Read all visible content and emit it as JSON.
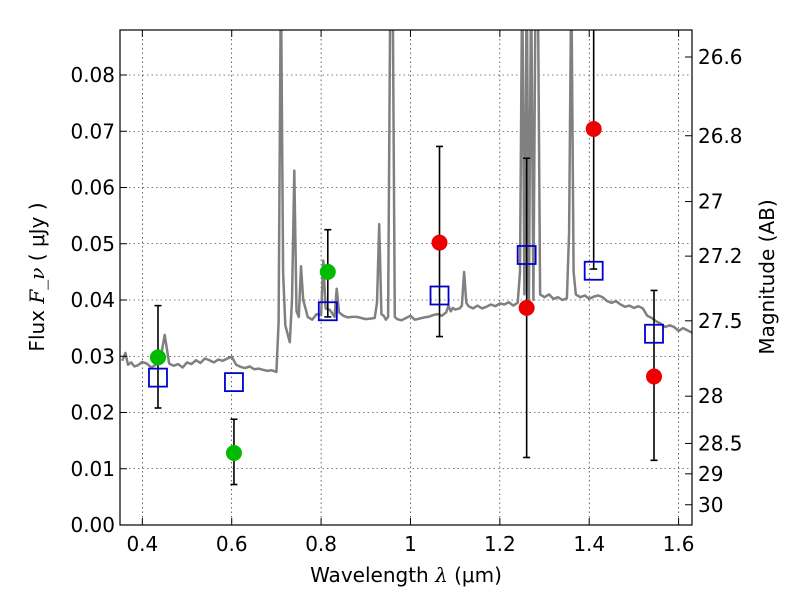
{
  "chart_data": {
    "type": "scatter",
    "title": "",
    "xlabel": "Wavelength  λ (μm)",
    "ylabel": "Flux  F_ν  ( μJy )",
    "ylabel_right": "Magnitude (AB)",
    "xlim": [
      0.35,
      1.63
    ],
    "ylim": [
      0.0,
      0.088
    ],
    "grid": true,
    "x_ticks": [
      0.4,
      0.6,
      0.8,
      1.0,
      1.2,
      1.4,
      1.6
    ],
    "x_tick_labels": [
      "0.4",
      "0.6",
      "0.8",
      "1",
      "1.2",
      "1.4",
      "1.6"
    ],
    "y_ticks": [
      0.0,
      0.01,
      0.02,
      0.03,
      0.04,
      0.05,
      0.06,
      0.07,
      0.08
    ],
    "y_tick_labels": [
      "0.00",
      "0.01",
      "0.02",
      "0.03",
      "0.04",
      "0.05",
      "0.06",
      "0.07",
      "0.08"
    ],
    "right_axis_ticks": [
      {
        "label": "26.6",
        "flux": 0.0832
      },
      {
        "label": "26.8",
        "flux": 0.0692
      },
      {
        "label": "27",
        "flux": 0.0575
      },
      {
        "label": "27.2",
        "flux": 0.0478
      },
      {
        "label": "27.5",
        "flux": 0.0363
      },
      {
        "label": "28",
        "flux": 0.0229
      },
      {
        "label": "28.5",
        "flux": 0.0145
      },
      {
        "label": "29",
        "flux": 0.0091
      },
      {
        "label": "30",
        "flux": 0.0036
      }
    ],
    "series": [
      {
        "kind": "spectrum",
        "color": "#808080",
        "x": [
          0.355,
          0.362,
          0.368,
          0.375,
          0.382,
          0.39,
          0.4,
          0.41,
          0.42,
          0.43,
          0.44,
          0.45,
          0.46,
          0.47,
          0.48,
          0.49,
          0.5,
          0.51,
          0.52,
          0.53,
          0.54,
          0.55,
          0.56,
          0.57,
          0.58,
          0.59,
          0.6,
          0.61,
          0.62,
          0.63,
          0.64,
          0.65,
          0.66,
          0.67,
          0.68,
          0.69,
          0.7,
          0.705,
          0.71,
          0.715,
          0.72,
          0.73,
          0.735,
          0.74,
          0.745,
          0.75,
          0.755,
          0.76,
          0.765,
          0.77,
          0.78,
          0.79,
          0.8,
          0.805,
          0.81,
          0.82,
          0.83,
          0.835,
          0.84,
          0.85,
          0.86,
          0.87,
          0.88,
          0.89,
          0.9,
          0.91,
          0.92,
          0.925,
          0.93,
          0.935,
          0.94,
          0.945,
          0.95,
          0.955,
          0.96,
          0.965,
          0.97,
          0.98,
          0.99,
          1.0,
          1.01,
          1.02,
          1.03,
          1.04,
          1.05,
          1.06,
          1.07,
          1.08,
          1.085,
          1.09,
          1.095,
          1.1,
          1.11,
          1.115,
          1.12,
          1.125,
          1.13,
          1.14,
          1.15,
          1.16,
          1.17,
          1.18,
          1.19,
          1.2,
          1.21,
          1.22,
          1.23,
          1.24,
          1.245,
          1.25,
          1.255,
          1.26,
          1.265,
          1.27,
          1.275,
          1.28,
          1.285,
          1.29,
          1.3,
          1.31,
          1.32,
          1.33,
          1.34,
          1.35,
          1.355,
          1.36,
          1.365,
          1.37,
          1.38,
          1.39,
          1.4,
          1.41,
          1.42,
          1.43,
          1.44,
          1.45,
          1.46,
          1.47,
          1.48,
          1.49,
          1.5,
          1.51,
          1.52,
          1.53,
          1.54,
          1.55,
          1.56,
          1.57,
          1.58,
          1.59,
          1.6,
          1.61,
          1.62,
          1.63
        ],
        "y": [
          0.0292,
          0.0306,
          0.0285,
          0.0289,
          0.0282,
          0.0284,
          0.029,
          0.0287,
          0.028,
          0.0285,
          0.0292,
          0.0338,
          0.0287,
          0.0283,
          0.0286,
          0.028,
          0.0289,
          0.0286,
          0.0293,
          0.0288,
          0.0296,
          0.0293,
          0.0289,
          0.0294,
          0.0292,
          0.0296,
          0.0299,
          0.0285,
          0.0281,
          0.0279,
          0.0282,
          0.0277,
          0.0278,
          0.0276,
          0.0274,
          0.0275,
          0.0272,
          0.036,
          0.098,
          0.045,
          0.0355,
          0.0325,
          0.04,
          0.063,
          0.038,
          0.037,
          0.046,
          0.04,
          0.0385,
          0.037,
          0.0365,
          0.0375,
          0.0373,
          0.047,
          0.0385,
          0.0382,
          0.037,
          0.042,
          0.0378,
          0.0372,
          0.0369,
          0.037,
          0.037,
          0.0368,
          0.0366,
          0.0367,
          0.0368,
          0.0395,
          0.0535,
          0.0375,
          0.0372,
          0.0365,
          0.037,
          0.098,
          0.098,
          0.037,
          0.0366,
          0.0364,
          0.0368,
          0.0372,
          0.0365,
          0.0367,
          0.0369,
          0.037,
          0.0373,
          0.0375,
          0.0372,
          0.0378,
          0.039,
          0.038,
          0.0386,
          0.0383,
          0.0385,
          0.039,
          0.045,
          0.0395,
          0.0389,
          0.0385,
          0.039,
          0.0385,
          0.0388,
          0.0392,
          0.0389,
          0.0394,
          0.0392,
          0.0396,
          0.039,
          0.0395,
          0.045,
          0.098,
          0.041,
          0.098,
          0.04,
          0.098,
          0.04,
          0.098,
          0.098,
          0.041,
          0.0405,
          0.041,
          0.0402,
          0.0405,
          0.04,
          0.0403,
          0.052,
          0.098,
          0.045,
          0.041,
          0.0405,
          0.0408,
          0.0402,
          0.0406,
          0.0408,
          0.0405,
          0.0398,
          0.0395,
          0.0398,
          0.0392,
          0.0388,
          0.039,
          0.0386,
          0.0389,
          0.0385,
          0.0372,
          0.0368,
          0.0362,
          0.0358,
          0.0352,
          0.0355,
          0.0352,
          0.0345,
          0.035,
          0.0346,
          0.0342
        ]
      },
      {
        "kind": "model-points",
        "marker": "open-square",
        "color": "#0000cc",
        "x": [
          0.435,
          0.605,
          0.815,
          1.065,
          1.26,
          1.41,
          1.545
        ],
        "y": [
          0.0262,
          0.0254,
          0.038,
          0.0408,
          0.048,
          0.0452,
          0.034
        ]
      },
      {
        "kind": "detections",
        "marker": "filled-circle",
        "color": "#00bb00",
        "x": [
          0.435,
          0.605,
          0.815
        ],
        "y": [
          0.0298,
          0.0128,
          0.045
        ],
        "yerr_low": [
          0.0208,
          0.0072,
          0.037
        ],
        "yerr_high": [
          0.039,
          0.0188,
          0.0525
        ]
      },
      {
        "kind": "detections",
        "marker": "filled-circle",
        "color": "#ee0000",
        "x": [
          1.065,
          1.26,
          1.41,
          1.545
        ],
        "y": [
          0.0502,
          0.0386,
          0.0704,
          0.0264
        ],
        "yerr_low": [
          0.0335,
          0.012,
          0.0455,
          0.0115
        ],
        "yerr_high": [
          0.0673,
          0.0652,
          0.0895,
          0.0417
        ]
      }
    ]
  }
}
